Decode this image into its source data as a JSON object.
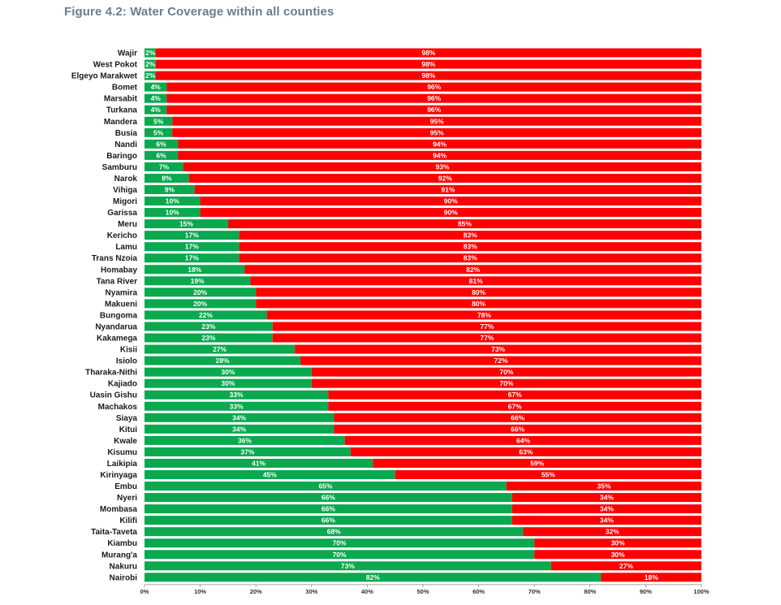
{
  "figure_title": "Figure 4.2: Water Coverage within all counties",
  "colors": {
    "covered": "#0aa84f",
    "not_covered": "#ff0000",
    "axis": "#888888",
    "text": "#1a1a1a"
  },
  "chart_data": {
    "type": "bar",
    "orientation": "horizontal",
    "stacked": true,
    "percent_stacked": true,
    "title": "Figure 4.2: Water Coverage within all counties",
    "xlim": [
      0,
      100
    ],
    "x_ticks": [
      "0%",
      "10%",
      "20%",
      "30%",
      "40%",
      "50%",
      "60%",
      "70%",
      "80%",
      "90%",
      "100%"
    ],
    "grid": false,
    "legend": "none",
    "categories": [
      "Wajir",
      "West Pokot",
      "Elgeyo Marakwet",
      "Bomet",
      "Marsabit",
      "Turkana",
      "Mandera",
      "Busia",
      "Nandi",
      "Baringo",
      "Samburu",
      "Narok",
      "Vihiga",
      "Migori",
      "Garissa",
      "Meru",
      "Kericho",
      "Lamu",
      "Trans Nzoia",
      "Homabay",
      "Tana River",
      "Nyamira",
      "Makueni",
      "Bungoma",
      "Nyandarua",
      "Kakamega",
      "Kisii",
      "Isiolo",
      "Tharaka-Nithi",
      "Kajiado",
      "Uasin Gishu",
      "Machakos",
      "Siaya",
      "Kitui",
      "Kwale",
      "Kisumu",
      "Laikipia",
      "Kirinyaga",
      "Embu",
      "Nyeri",
      "Mombasa",
      "Kilifi",
      "Taita-Taveta",
      "Kiambu",
      "Murang'a",
      "Nakuru",
      "Nairobi"
    ],
    "series": [
      {
        "color": "#0aa84f",
        "values": [
          2,
          2,
          2,
          4,
          4,
          4,
          5,
          5,
          6,
          6,
          7,
          8,
          9,
          10,
          10,
          15,
          17,
          17,
          17,
          18,
          19,
          20,
          20,
          22,
          23,
          23,
          27,
          28,
          30,
          30,
          33,
          33,
          34,
          34,
          36,
          37,
          41,
          45,
          65,
          66,
          66,
          66,
          68,
          70,
          70,
          73,
          82
        ]
      },
      {
        "color": "#ff0000",
        "values": [
          98,
          98,
          98,
          96,
          96,
          96,
          95,
          95,
          94,
          94,
          93,
          92,
          91,
          90,
          90,
          85,
          83,
          83,
          83,
          82,
          81,
          80,
          80,
          78,
          77,
          77,
          73,
          72,
          70,
          70,
          67,
          67,
          66,
          66,
          64,
          63,
          59,
          55,
          35,
          34,
          34,
          34,
          32,
          30,
          30,
          27,
          18
        ]
      }
    ]
  }
}
